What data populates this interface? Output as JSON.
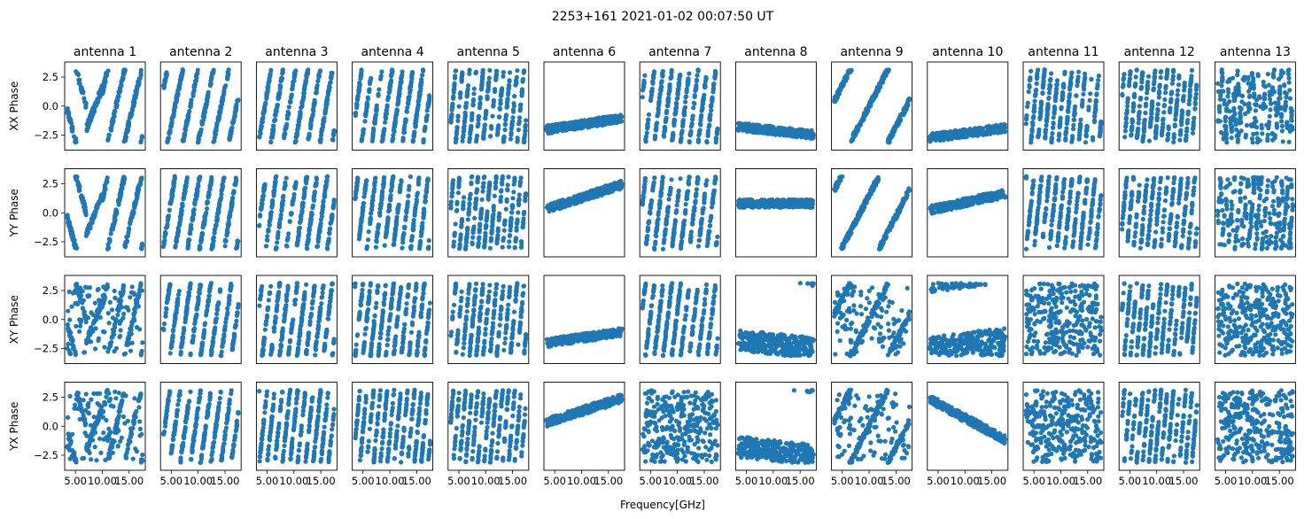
{
  "figure": {
    "title": "2253+161 2021-01-02 00:07:50 UT",
    "xlabel": "Frequency[GHz]"
  },
  "chart_data": {
    "type": "scatter",
    "title": "2253+161 2021-01-02 00:07:50 UT",
    "xlabel": "Frequency[GHz]",
    "xlim": [
      3.0,
      18.0
    ],
    "ylim": [
      -3.8,
      3.8
    ],
    "x_ticks": [
      5.0,
      10.0,
      15.0
    ],
    "x_tick_labels": [
      "5.00",
      "10.00",
      "15.00"
    ],
    "y_ticks": [
      2.5,
      0.0,
      -2.5
    ],
    "y_tick_labels": [
      "2.5",
      "0.0",
      "−2.5"
    ],
    "columns": [
      "antenna 1",
      "antenna 2",
      "antenna 3",
      "antenna 4",
      "antenna 5",
      "antenna 6",
      "antenna 7",
      "antenna 8",
      "antenna 9",
      "antenna 10",
      "antenna 11",
      "antenna 12",
      "antenna 13"
    ],
    "rows": [
      "XX Phase",
      "YY Phase",
      "XY Phase",
      "YX Phase"
    ],
    "marker_color": "#1f77b4",
    "panel_patterns": [
      [
        "v1",
        "w4",
        "w5",
        "w6",
        "w9",
        "f6",
        "w7",
        "f8",
        "s9",
        "f10",
        "w9",
        "w10",
        "b12"
      ],
      [
        "v2",
        "w5",
        "w6",
        "w7",
        "w10",
        "f6b",
        "w7b",
        "f8b",
        "s9b",
        "f10b",
        "w8",
        "w9",
        "b13"
      ],
      [
        "v3",
        "w6",
        "w7",
        "w8",
        "w9",
        "f6",
        "w7",
        "f8c",
        "s9c",
        "f10c",
        "r",
        "w10",
        "r"
      ],
      [
        "v4",
        "w6",
        "w8",
        "w9",
        "w10",
        "f6d",
        "r",
        "f8d",
        "s9d",
        "f10d",
        "r",
        "w10",
        "r"
      ]
    ]
  }
}
